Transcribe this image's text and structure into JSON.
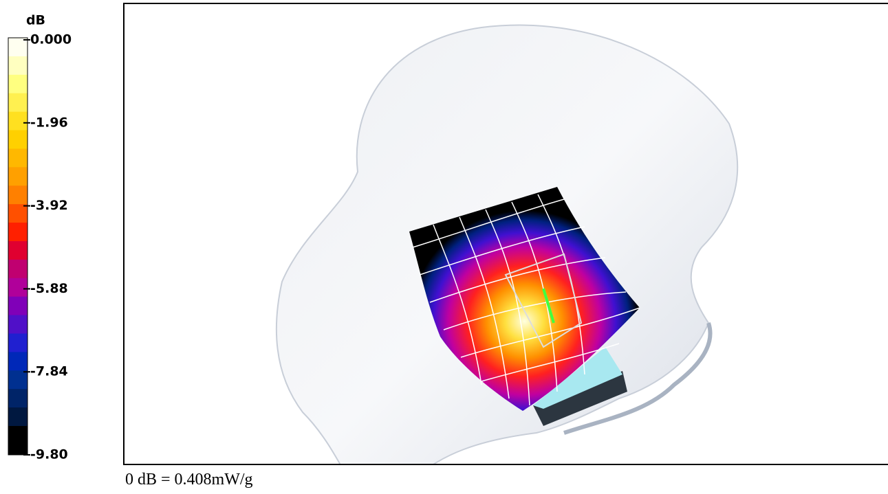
{
  "colorbar": {
    "unit": "dB",
    "labels": [
      "0.000",
      "-1.96",
      "-3.92",
      "-5.88",
      "-7.84",
      "-9.80"
    ]
  },
  "caption": "0 dB = 0.408mW/g"
}
